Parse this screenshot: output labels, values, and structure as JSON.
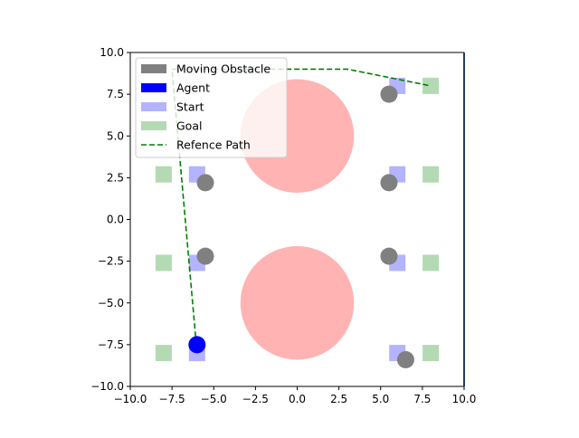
{
  "chart_data": {
    "type": "scatter",
    "title": "",
    "xlabel": "",
    "ylabel": "",
    "xlim": [
      -10,
      10
    ],
    "ylim": [
      -10,
      10
    ],
    "grid": false,
    "aspect": "equal",
    "xticks": [
      -10,
      -7.5,
      -5,
      -2.5,
      0,
      2.5,
      5,
      7.5,
      10
    ],
    "yticks": [
      -10,
      -7.5,
      -5,
      -2.5,
      0,
      2.5,
      5,
      7.5,
      10
    ],
    "xtick_labels": [
      "−10.0",
      "−7.5",
      "−5.0",
      "−2.5",
      "0.0",
      "2.5",
      "5.0",
      "7.5",
      "10.0"
    ],
    "ytick_labels": [
      "−10.0",
      "−7.5",
      "−5.0",
      "−2.5",
      "0.0",
      "2.5",
      "5.0",
      "7.5",
      "10.0"
    ],
    "legend": {
      "placement": "upper-left",
      "entries": [
        {
          "label": "Moving Obstacle",
          "marker": "patch",
          "color": "#808080"
        },
        {
          "label": "Agent",
          "marker": "patch",
          "color": "#0000ff"
        },
        {
          "label": "Start",
          "marker": "patch",
          "color": "#b3b3ff"
        },
        {
          "label": "Goal",
          "marker": "patch",
          "color": "#b3dab3"
        },
        {
          "label": "Refence Path",
          "marker": "dashed-line",
          "color": "#008000"
        }
      ]
    },
    "static_obstacles": [
      {
        "cx": 0,
        "cy": 5,
        "r": 3.4,
        "color": "#ffb3b3"
      },
      {
        "cx": 0,
        "cy": -5,
        "r": 3.4,
        "color": "#ffb3b3"
      }
    ],
    "goals": [
      [
        -8,
        2.7
      ],
      [
        -8,
        -2.6
      ],
      [
        -8,
        -8
      ],
      [
        8,
        8
      ],
      [
        8,
        2.7
      ],
      [
        8,
        -2.6
      ],
      [
        8,
        -8
      ]
    ],
    "starts": [
      [
        -6,
        2.7
      ],
      [
        -6,
        -2.6
      ],
      [
        -6,
        -8
      ],
      [
        6,
        8
      ],
      [
        6,
        2.7
      ],
      [
        6,
        -2.6
      ],
      [
        6,
        -8
      ]
    ],
    "moving_obstacles": [
      [
        -5.5,
        2.2
      ],
      [
        -5.5,
        -2.2
      ],
      [
        5.5,
        7.5
      ],
      [
        5.5,
        2.2
      ],
      [
        5.5,
        -2.2
      ],
      [
        6.5,
        -8.4
      ]
    ],
    "agent": [
      -6,
      -7.5
    ],
    "reference_path": [
      [
        -6,
        -8
      ],
      [
        -7.5,
        9
      ],
      [
        3,
        9
      ],
      [
        8,
        8
      ]
    ],
    "colors": {
      "static_obstacle": "#ffb3b3",
      "goal": "#b3dab3",
      "start": "#b3b3ff",
      "moving_obstacle": "#808080",
      "agent": "#0000ff",
      "reference_path": "#008000",
      "frame": "#000000",
      "right_edge": "#1f3b66"
    }
  }
}
